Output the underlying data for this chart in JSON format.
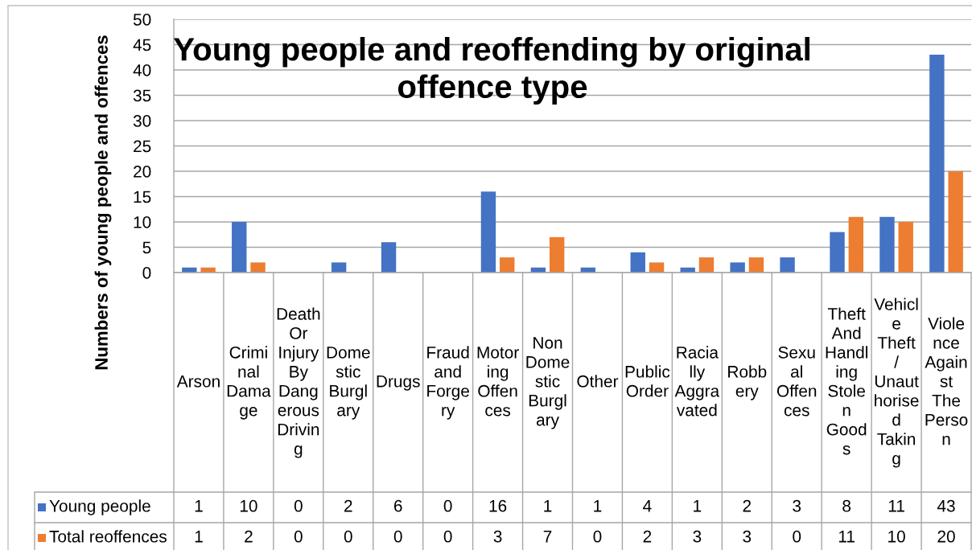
{
  "chart_data": {
    "type": "bar",
    "title": "Young people and reoffending by original offence type",
    "ylabel": "Numbers of young people and offences",
    "categories": [
      "Arson",
      "Criminal Damage",
      "Death Or Injury By Dangerous Driving",
      "Domestic Burglary",
      "Drugs",
      "Fraud and Forgery",
      "Motoring Offences",
      "Non Domestic Burglary",
      "Other",
      "Public Order",
      "Racially Aggravated",
      "Robbery",
      "Sexual Offences",
      "Theft And Handling Stolen Goods",
      "Vehicle Theft / Unauthorised Taking",
      "Violence Against The Person"
    ],
    "series": [
      {
        "name": "Young people",
        "color": "#4472c4",
        "values": [
          1,
          10,
          0,
          2,
          6,
          0,
          16,
          1,
          1,
          4,
          1,
          2,
          3,
          8,
          11,
          43
        ]
      },
      {
        "name": "Total reoffences",
        "color": "#ed7d31",
        "values": [
          1,
          2,
          0,
          0,
          0,
          0,
          3,
          7,
          0,
          2,
          3,
          3,
          0,
          11,
          10,
          20
        ]
      }
    ],
    "ylim": [
      0,
      50
    ],
    "yticks": [
      0,
      5,
      10,
      15,
      20,
      25,
      30,
      35,
      40,
      45,
      50
    ],
    "grid": "y",
    "data_labels": true,
    "legend": "bottom left"
  }
}
